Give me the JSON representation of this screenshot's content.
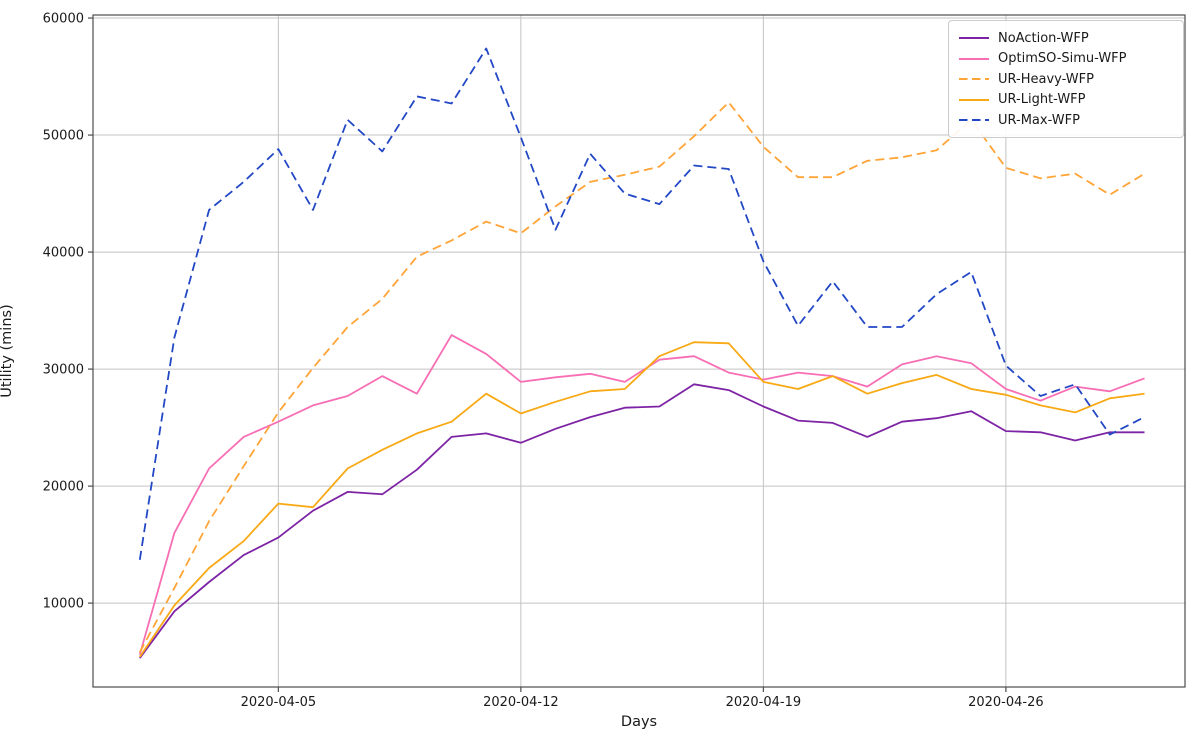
{
  "figure": {
    "xlabel": "Days",
    "ylabel": "Utility (mins)"
  },
  "chart_data": {
    "type": "line",
    "title": "",
    "xlabel": "Days",
    "ylabel": "Utility (mins)",
    "grid": true,
    "legend_position": "upper right",
    "x_dates": [
      "2020-04-01",
      "2020-04-02",
      "2020-04-03",
      "2020-04-04",
      "2020-04-05",
      "2020-04-06",
      "2020-04-07",
      "2020-04-08",
      "2020-04-09",
      "2020-04-10",
      "2020-04-11",
      "2020-04-12",
      "2020-04-13",
      "2020-04-14",
      "2020-04-15",
      "2020-04-16",
      "2020-04-17",
      "2020-04-18",
      "2020-04-19",
      "2020-04-20",
      "2020-04-21",
      "2020-04-22",
      "2020-04-23",
      "2020-04-24",
      "2020-04-25",
      "2020-04-26",
      "2020-04-27",
      "2020-04-28",
      "2020-04-29",
      "2020-04-30"
    ],
    "x_tick_positions": [
      5,
      12,
      19,
      26
    ],
    "x_tick_labels": [
      "2020-04-05",
      "2020-04-12",
      "2020-04-19",
      "2020-04-26"
    ],
    "x_axis_range_days": [
      -0.35,
      31.17
    ],
    "y_ticks": [
      10000,
      20000,
      30000,
      40000,
      50000,
      60000
    ],
    "y_tick_labels": [
      "10000",
      "20000",
      "30000",
      "40000",
      "50000",
      "60000"
    ],
    "y_axis_range": [
      2830,
      60260
    ],
    "colors": {
      "grid": "#c3c3c3",
      "spine": "#4d4d4d",
      "text": "#1a1a1a"
    },
    "series": [
      {
        "name": "NoAction-WFP",
        "color": "#7d24a5",
        "dash": "solid",
        "values": [
          5300,
          9300,
          11800,
          14100,
          15600,
          17900,
          19500,
          19300,
          21400,
          24200,
          24500,
          23700,
          24900,
          25900,
          26700,
          26800,
          28700,
          28200,
          26800,
          25600,
          25400,
          24200,
          25500,
          25800,
          26400,
          24700,
          24600,
          23900,
          24600,
          24600
        ]
      },
      {
        "name": "OptimSO-Simu-WFP",
        "color": "#f86eb4",
        "dash": "solid",
        "values": [
          5600,
          16000,
          21500,
          24200,
          25500,
          26900,
          27700,
          29400,
          27900,
          32900,
          31300,
          28900,
          29300,
          29600,
          28900,
          30800,
          31100,
          29700,
          29100,
          29700,
          29400,
          28500,
          30400,
          31100,
          30500,
          28300,
          27300,
          28500,
          28100,
          29200
        ]
      },
      {
        "name": "UR-Heavy-WFP",
        "color": "#ffa437",
        "dash": "dashed",
        "values": [
          5800,
          11300,
          17000,
          21700,
          26300,
          30100,
          33600,
          36000,
          39600,
          41000,
          42600,
          41600,
          43900,
          46000,
          46600,
          47300,
          49900,
          52800,
          49000,
          46400,
          46400,
          47800,
          48100,
          48700,
          51300,
          47200,
          46300,
          46700,
          44900,
          46700
        ]
      },
      {
        "name": "UR-Light-WFP",
        "color": "#f8a915",
        "dash": "solid",
        "values": [
          5400,
          9800,
          13000,
          15300,
          18500,
          18200,
          21500,
          23100,
          24500,
          25500,
          27900,
          26200,
          27200,
          28100,
          28300,
          31100,
          32300,
          32200,
          28900,
          28300,
          29400,
          27900,
          28800,
          29500,
          28300,
          27800,
          26900,
          26300,
          27500,
          27900
        ]
      },
      {
        "name": "UR-Max-WFP",
        "color": "#2348c6",
        "dash": "dashed",
        "values": [
          13700,
          32700,
          43600,
          46000,
          48800,
          43600,
          51300,
          48600,
          53300,
          52700,
          57400,
          49800,
          41900,
          48400,
          45000,
          44100,
          47400,
          47100,
          39200,
          33700,
          37500,
          33600,
          33600,
          36400,
          38300,
          30300,
          27700,
          28700,
          24400,
          25900
        ]
      }
    ]
  }
}
